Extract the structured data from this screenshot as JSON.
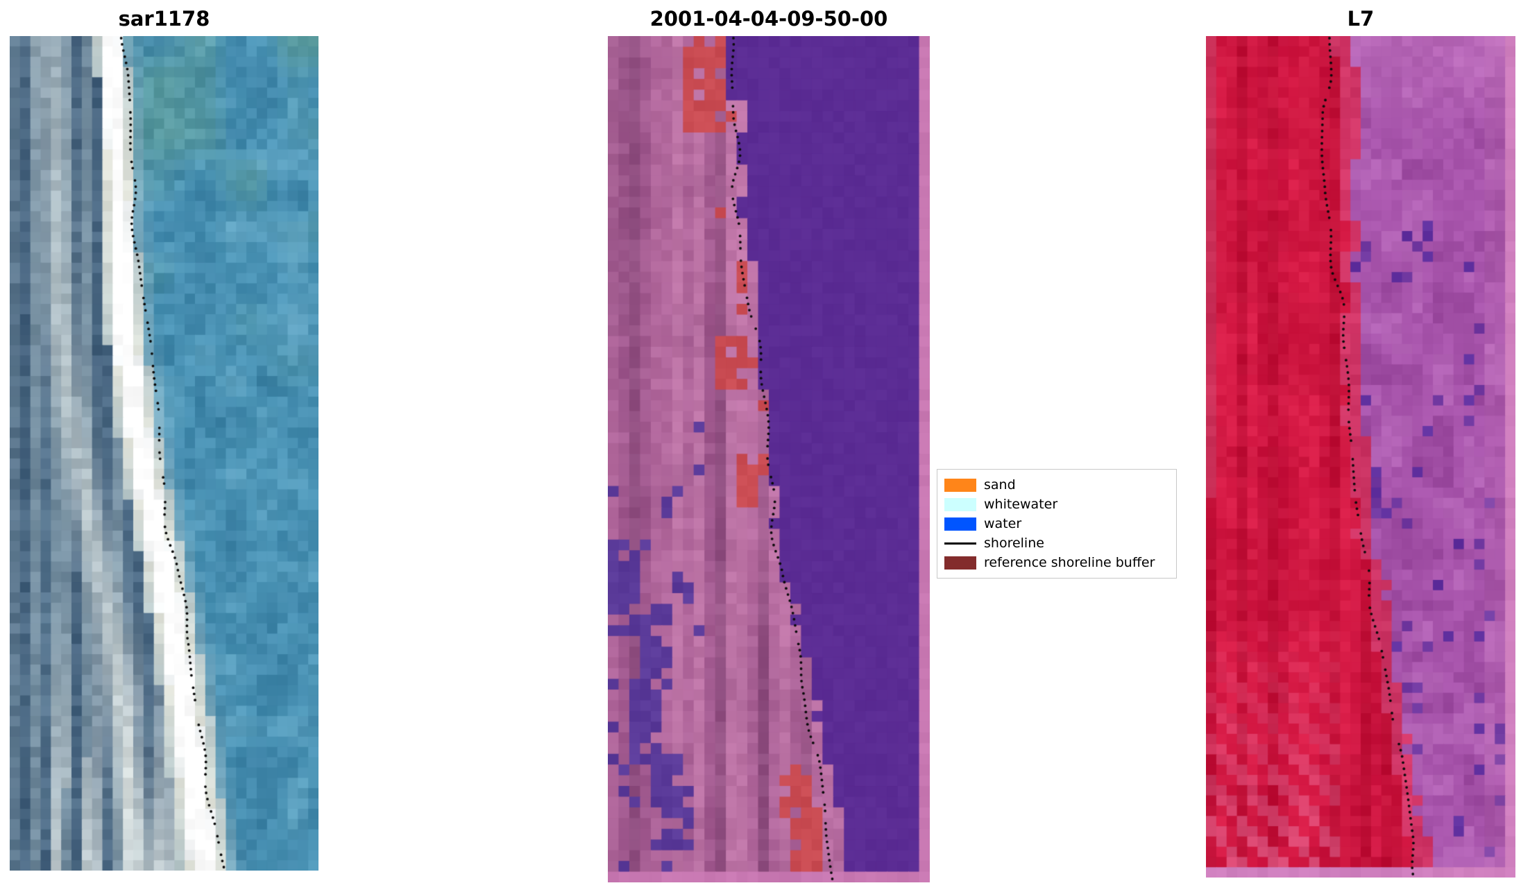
{
  "figure": {
    "background": "#ffffff"
  },
  "chart_data": {
    "type": "image-panels",
    "panel_titles": [
      "sar1178",
      "2001-04-04-09-50-00",
      "L7"
    ],
    "legend_entries": [
      "sand",
      "whitewater",
      "water",
      "shoreline",
      "reference shoreline buffer"
    ],
    "legend_colors": [
      "#ff8519",
      "#ccffff",
      "#0055ff",
      "#000000",
      "#832c2c"
    ],
    "shoreline_marker": "black dots running diagonally top-left to bottom-right in each panel"
  },
  "panels": [
    {
      "title": "sar1178",
      "style": "sar",
      "seed": 11,
      "grid": {
        "cols": 30,
        "rows": 81
      },
      "band": {
        "c0": 8.8,
        "c1": 18.8,
        "accel": 0.5,
        "wiggleAmp": 0.5,
        "wiggleFreq": 9,
        "phase": 1.2,
        "hw0": 1.5,
        "hwGrow": 1.0
      },
      "boundary": null,
      "shoreline": {
        "c0": 10.9,
        "c1": 21.0,
        "accel": 0.5,
        "wiggleAmp": 0.25,
        "wiggleFreq": 18,
        "phase": 0.5,
        "color": "#0a0a0a",
        "spacing": 9,
        "dotRadius": 1.9,
        "skip": 0.16
      },
      "colors": {
        "bandLight": "#ffffff",
        "bandBase": "#efecdf",
        "bandEdge": "#b7c8cb",
        "leftDark": "#3e5b77",
        "leftMid": "#5d7c95",
        "leftLight": "#93a9b4",
        "leftBand": "#d6dedd",
        "foamBottom": "#eef1ec",
        "seaBase": "#4a93b5",
        "seaLight": "#6aaac6",
        "seaDark": "#367a9e",
        "seaGreen": "#69a592"
      }
    },
    {
      "title": "2001-04-04-09-50-00",
      "style": "classified",
      "seed": 23,
      "grid": {
        "cols": 30,
        "rows": 79
      },
      "boundary": {
        "c0": 10.6,
        "c1": 22.0,
        "accel": 0.5,
        "wiggleAmp": 0.5,
        "wiggleFreq": 6,
        "phase": 2
      },
      "shoreline": {
        "c0": 11.1,
        "c1": 21.4,
        "accel": 0.5,
        "wiggleAmp": 0.3,
        "wiggleFreq": 16,
        "phase": 1,
        "color": "#0a0a0a",
        "spacing": 9,
        "dotRadius": 1.9,
        "skip": 0.16
      },
      "redClusters": [
        [
          7,
          0,
          4,
          9
        ],
        [
          10,
          28,
          3,
          5
        ],
        [
          12,
          39,
          3,
          5
        ],
        [
          16,
          68,
          3,
          5
        ],
        [
          17,
          72,
          3,
          7
        ]
      ],
      "purpleClusters": [
        [
          0,
          47,
          3,
          9
        ],
        [
          3,
          54,
          3,
          7
        ],
        [
          2,
          60,
          3,
          8
        ],
        [
          4,
          67,
          3,
          9
        ],
        [
          6,
          49,
          2,
          4
        ],
        [
          6,
          70,
          2,
          6
        ]
      ],
      "colors": {
        "water": "#5b2c94",
        "landA": "#b1679c",
        "landB": "#a0588e",
        "landC": "#bd74a6",
        "landD": "#8e4d7f",
        "nearshore": "#c77bae",
        "red": "#c94b52",
        "darkPurple": "#5a3a99",
        "edge": "#c878b2"
      }
    },
    {
      "title": "L7",
      "style": "l7",
      "seed": 37,
      "grid": {
        "cols": 30,
        "rows": 82
      },
      "boundary": {
        "c0": 13.2,
        "c1": 21.3,
        "accel": 0.8,
        "wiggleAmp": 0.4,
        "wiggleFreq": 7,
        "phase": 0.4
      },
      "shoreline": {
        "c0": 11.5,
        "c1": 20.6,
        "accel": 0.8,
        "wiggleAmp": 0.3,
        "wiggleFreq": 15,
        "phase": 2,
        "color": "#0a0a0a",
        "spacing": 9,
        "dotRadius": 1.9,
        "skip": 0.16
      },
      "colors": {
        "redA": "#cc1440",
        "redB": "#bd0e35",
        "redC": "#d81c47",
        "pinkStreak": "#e0739e",
        "shoreZone": "#d4548c",
        "purA": "#a855ac",
        "purB": "#9c4aa0",
        "purC": "#b262b5",
        "purDark": "#7038a0",
        "purDarker": "#5f2f9e",
        "topRight": "#c476c2",
        "edge": "#cf7fbe"
      }
    }
  ],
  "legend": {
    "items": [
      {
        "label": "sand",
        "color": "#ff8519",
        "handle": "patch"
      },
      {
        "label": "whitewater",
        "color": "#ccffff",
        "handle": "patch"
      },
      {
        "label": "water",
        "color": "#0055ff",
        "handle": "patch"
      },
      {
        "label": "shoreline",
        "color": "#000000",
        "handle": "line"
      },
      {
        "label": "reference shoreline buffer",
        "color": "#832c2c",
        "handle": "patch"
      }
    ]
  }
}
